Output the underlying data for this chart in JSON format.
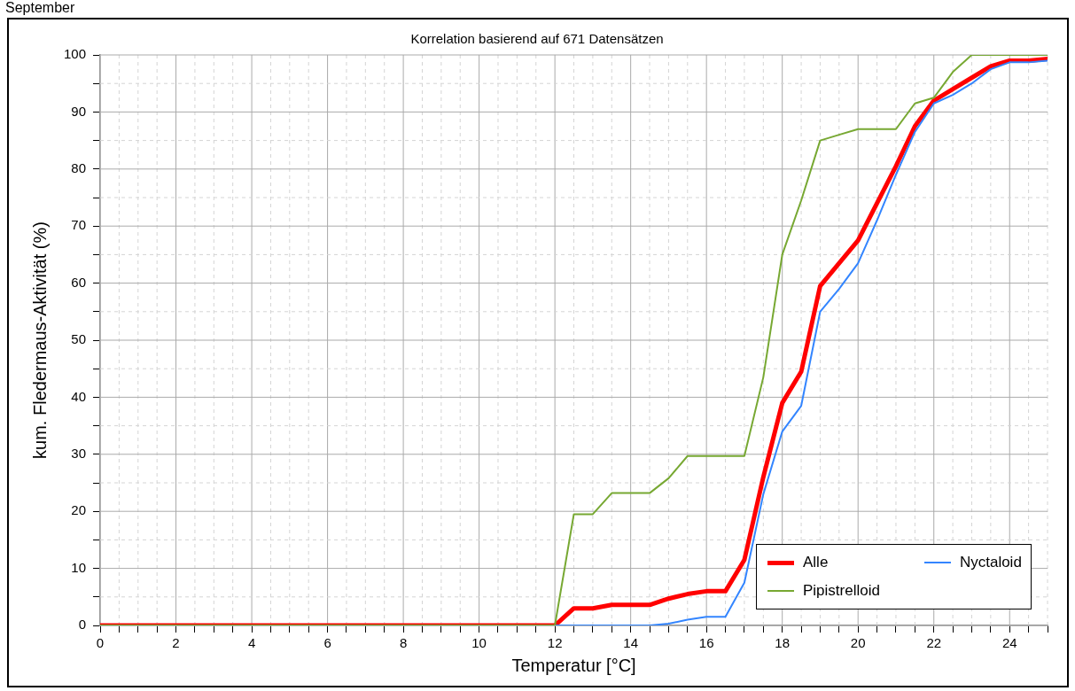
{
  "chart_data": {
    "type": "line",
    "title": "Korrelation basierend auf 671 Datensätzen",
    "xlabel": "Temperatur [°C]",
    "ylabel": "kum. Fledermaus-Aktivität (%)",
    "annotations": [
      "September"
    ],
    "x": [
      0,
      12,
      12.5,
      13,
      13.5,
      14,
      14.5,
      15,
      15.5,
      16,
      16.5,
      17,
      17.5,
      18,
      18.5,
      19,
      19.5,
      20,
      20.5,
      21,
      21.5,
      22,
      22.5,
      23,
      23.5,
      24,
      24.5,
      25
    ],
    "series": [
      {
        "name": "Alle",
        "color": "#ff0000",
        "values": [
          0,
          0,
          3,
          3,
          3.6,
          3.6,
          3.6,
          4.7,
          5.5,
          6,
          6,
          11.5,
          26,
          39,
          44.5,
          59.5,
          63.5,
          67.5,
          74,
          80.5,
          87.5,
          92,
          94,
          96,
          98,
          99,
          99,
          99.3
        ]
      },
      {
        "name": "Nyctaloid",
        "color": "#3385ff",
        "values": [
          0,
          0,
          0,
          0,
          0,
          0,
          0,
          0.3,
          1,
          1.5,
          1.5,
          7.5,
          23,
          34,
          38.5,
          55,
          59,
          63.5,
          71,
          79,
          86.5,
          91.5,
          93,
          95,
          97.5,
          98.7,
          98.7,
          99
        ]
      },
      {
        "name": "Pipistrelloid",
        "color": "#77a832",
        "values": [
          0,
          0,
          19.5,
          19.5,
          23.2,
          23.2,
          23.2,
          25.8,
          29.7,
          29.7,
          29.7,
          29.7,
          43.5,
          65,
          74.5,
          85,
          86,
          87,
          87,
          87,
          91.5,
          92.5,
          97,
          100,
          100,
          100,
          100,
          100
        ]
      }
    ],
    "xlim": [
      0,
      25
    ],
    "xticks": [
      0,
      {
        "value": 0.5,
        "label": null
      },
      {
        "value": 1,
        "label": null
      },
      {
        "value": 1.5,
        "label": null
      },
      2,
      {
        "value": 2.5,
        "label": null
      },
      {
        "value": 3,
        "label": null
      },
      {
        "value": 3.5,
        "label": null
      },
      4,
      {
        "value": 4.5,
        "label": null
      },
      {
        "value": 5,
        "label": null
      },
      {
        "value": 5.5,
        "label": null
      },
      6,
      {
        "value": 6.5,
        "label": null
      },
      {
        "value": 7,
        "label": null
      },
      {
        "value": 7.5,
        "label": null
      },
      8,
      {
        "value": 8.5,
        "label": null
      },
      {
        "value": 9,
        "label": null
      },
      {
        "value": 9.5,
        "label": null
      },
      10,
      {
        "value": 10.5,
        "label": null
      },
      {
        "value": 11,
        "label": null
      },
      {
        "value": 11.5,
        "label": null
      },
      12,
      {
        "value": 12.5,
        "label": null
      },
      {
        "value": 13,
        "label": null
      },
      {
        "value": 13.5,
        "label": null
      },
      14,
      {
        "value": 14.5,
        "label": null
      },
      {
        "value": 15,
        "label": null
      },
      {
        "value": 15.5,
        "label": null
      },
      16,
      {
        "value": 16.5,
        "label": null
      },
      {
        "value": 17,
        "label": null
      },
      {
        "value": 17.5,
        "label": null
      },
      18,
      {
        "value": 18.5,
        "label": null
      },
      {
        "value": 19,
        "label": null
      },
      {
        "value": 19.5,
        "label": null
      },
      20,
      {
        "value": 20.5,
        "label": null
      },
      {
        "value": 21,
        "label": null
      },
      {
        "value": 21.5,
        "label": null
      },
      22,
      {
        "value": 22.5,
        "label": null
      },
      {
        "value": 23,
        "label": null
      },
      {
        "value": 23.5,
        "label": null
      },
      24,
      {
        "value": 24.5,
        "label": null
      },
      {
        "value": 25,
        "label": null
      }
    ],
    "ylim": [
      0,
      100
    ],
    "yticks": [
      0,
      {
        "value": 5,
        "label": null
      },
      10,
      {
        "value": 15,
        "label": null
      },
      20,
      {
        "value": 25,
        "label": null
      },
      30,
      {
        "value": 35,
        "label": null
      },
      40,
      {
        "value": 45,
        "label": null
      },
      50,
      {
        "value": 55,
        "label": null
      },
      60,
      {
        "value": 65,
        "label": null
      },
      70,
      {
        "value": 75,
        "label": null
      },
      80,
      {
        "value": 85,
        "label": null
      },
      90,
      {
        "value": 95,
        "label": null
      },
      100
    ],
    "grid": true,
    "legend": "bottom right",
    "marker": "none",
    "line_style": "solid"
  }
}
